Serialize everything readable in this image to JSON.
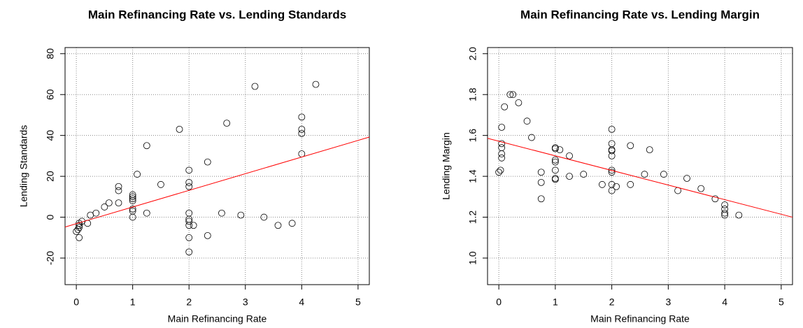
{
  "chart_data": [
    {
      "type": "scatter",
      "title": "Main Refinancing Rate vs. Lending Standards",
      "x_label": "Main Refinancing Rate",
      "y_label": "Lending Standards",
      "x": [
        0,
        0.03,
        0.05,
        0.05,
        0.05,
        0.05,
        0.1,
        0.2,
        0.25,
        0.35,
        0.5,
        0.58,
        0.75,
        0.75,
        0.75,
        1,
        1,
        1,
        1,
        1,
        1,
        1,
        1.08,
        1.25,
        1.25,
        1.5,
        1.83,
        2,
        2,
        2,
        2,
        2,
        2,
        2,
        2,
        2,
        2.08,
        2.33,
        2.33,
        2.58,
        2.67,
        2.92,
        3.17,
        3.33,
        3.58,
        3.83,
        4,
        4,
        4,
        4,
        4.25
      ],
      "y": [
        -7,
        -6,
        -4,
        -3,
        -10,
        -5,
        -2,
        -3,
        1,
        2,
        5,
        7,
        13,
        15,
        7,
        11,
        10,
        9,
        8,
        4,
        3,
        0,
        21,
        35,
        2,
        16,
        43,
        23,
        17,
        15,
        2,
        -1,
        -2,
        -4,
        -10,
        -17,
        -4,
        27,
        -9,
        2,
        46,
        1,
        64,
        0,
        -4,
        -3,
        49,
        43,
        41,
        31,
        65
      ],
      "regression_line": {
        "color": "#ff0000",
        "x": [
          -0.2,
          5.2
        ],
        "y": [
          -4.8,
          39.2
        ]
      },
      "xlim": [
        -0.2,
        5.2
      ],
      "ylim": [
        -33,
        83
      ],
      "xticks": [
        0,
        1,
        2,
        3,
        4,
        5
      ],
      "yticks": [
        -20,
        0,
        20,
        40,
        60,
        80
      ],
      "grid": true
    },
    {
      "type": "scatter",
      "title": "Main Refinancing Rate vs. Lending Margin",
      "x_label": "Main Refinancing Rate",
      "y_label": "Lending Margin",
      "x": [
        0,
        0.03,
        0.05,
        0.05,
        0.05,
        0.05,
        0.05,
        0.1,
        0.2,
        0.25,
        0.35,
        0.5,
        0.58,
        0.75,
        0.75,
        0.75,
        1,
        1,
        1,
        1,
        1,
        1,
        1,
        1.08,
        1.25,
        1.25,
        1.5,
        1.83,
        2,
        2,
        2,
        2,
        2,
        2,
        2,
        2,
        2,
        2.08,
        2.33,
        2.33,
        2.58,
        2.67,
        2.92,
        3.17,
        3.33,
        3.58,
        3.83,
        4,
        4,
        4,
        4,
        4.25
      ],
      "y": [
        1.42,
        1.43,
        1.64,
        1.56,
        1.54,
        1.51,
        1.49,
        1.74,
        1.8,
        1.8,
        1.76,
        1.67,
        1.59,
        1.42,
        1.37,
        1.29,
        1.54,
        1.535,
        1.48,
        1.47,
        1.43,
        1.39,
        1.385,
        1.53,
        1.5,
        1.4,
        1.41,
        1.36,
        1.63,
        1.56,
        1.53,
        1.525,
        1.5,
        1.43,
        1.42,
        1.36,
        1.33,
        1.35,
        1.55,
        1.36,
        1.41,
        1.53,
        1.41,
        1.33,
        1.39,
        1.34,
        1.29,
        1.26,
        1.24,
        1.22,
        1.21,
        1.21
      ],
      "regression_line": {
        "color": "#ff0000",
        "x": [
          -0.2,
          5.2
        ],
        "y": [
          1.586,
          1.2
        ]
      },
      "xlim": [
        -0.2,
        5.2
      ],
      "ylim": [
        0.87,
        2.03
      ],
      "xticks": [
        0,
        1,
        2,
        3,
        4,
        5
      ],
      "yticks": [
        {
          "value": 1,
          "label": "1.0"
        },
        {
          "value": 1.2,
          "label": "1.2"
        },
        {
          "value": 1.4,
          "label": "1.4"
        },
        {
          "value": 1.6,
          "label": "1.6"
        },
        {
          "value": 1.8,
          "label": "1.8"
        },
        {
          "value": 2,
          "label": "2.0"
        }
      ],
      "grid": true
    }
  ]
}
